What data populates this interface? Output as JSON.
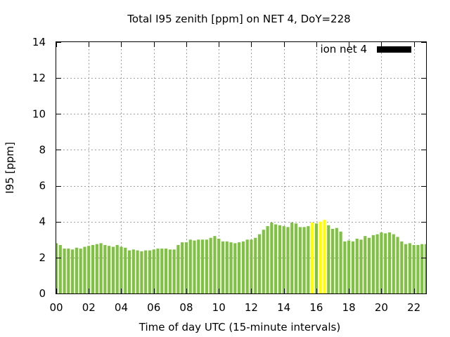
{
  "chart_data": {
    "type": "bar",
    "title": "Total I95 zenith [ppm] on NET 4, DoY=228",
    "xlabel": "Time of day UTC (15-minute intervals)",
    "ylabel": "I95 [ppm]",
    "xlim": [
      0,
      22.75
    ],
    "ylim": [
      0,
      14
    ],
    "x_ticks": [
      "00",
      "02",
      "04",
      "06",
      "08",
      "10",
      "12",
      "14",
      "16",
      "18",
      "20",
      "22"
    ],
    "y_ticks": [
      "0",
      "2",
      "4",
      "6",
      "8",
      "10",
      "12",
      "14"
    ],
    "grid": true,
    "legend": {
      "label": "ion net 4",
      "color": "#000000",
      "position": "top-right"
    },
    "colors": {
      "normal": "#7fc241",
      "highlight": "#ffff00"
    },
    "interval_hours": 0.25,
    "values": [
      2.8,
      2.7,
      2.5,
      2.5,
      2.45,
      2.55,
      2.5,
      2.6,
      2.65,
      2.7,
      2.75,
      2.8,
      2.7,
      2.65,
      2.6,
      2.7,
      2.6,
      2.55,
      2.4,
      2.45,
      2.4,
      2.35,
      2.4,
      2.4,
      2.45,
      2.5,
      2.5,
      2.5,
      2.45,
      2.45,
      2.7,
      2.85,
      2.85,
      3.0,
      2.95,
      3.0,
      3.0,
      3.0,
      3.1,
      3.2,
      3.05,
      2.9,
      2.9,
      2.85,
      2.8,
      2.85,
      2.9,
      3.0,
      3.0,
      3.1,
      3.3,
      3.55,
      3.75,
      3.95,
      3.85,
      3.8,
      3.75,
      3.7,
      3.95,
      3.9,
      3.7,
      3.7,
      3.75,
      3.95,
      3.9,
      4.0,
      4.1,
      3.8,
      3.6,
      3.65,
      3.45,
      2.9,
      2.95,
      2.9,
      3.05,
      3.0,
      3.2,
      3.1,
      3.25,
      3.3,
      3.4,
      3.35,
      3.4,
      3.3,
      3.15,
      2.9,
      2.75,
      2.8,
      2.7,
      2.7,
      2.75,
      2.75
    ],
    "highlight_indices": [
      63,
      65,
      66
    ]
  }
}
